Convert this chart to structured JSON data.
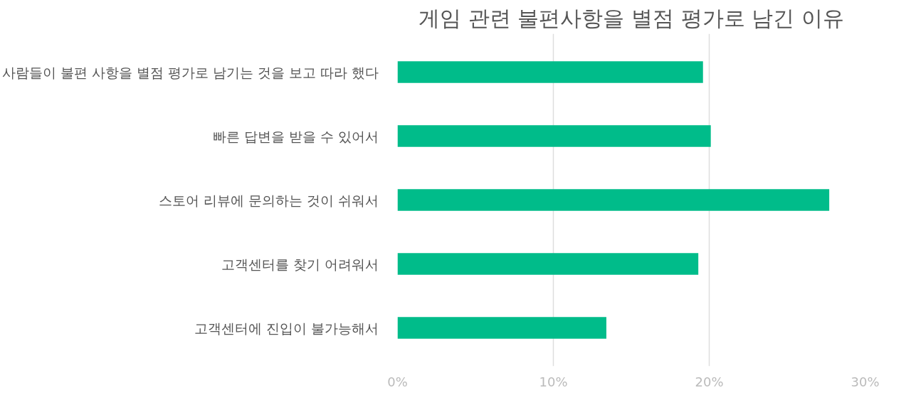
{
  "chart_data": {
    "type": "bar",
    "orientation": "horizontal",
    "title": "게임 관련 불편사항을 별점 평가로 남긴 이유",
    "categories": [
      "사람들이 불편 사항을 별점 평가로 남기는 것을 보고 따라 했다",
      "빠른 답변을 받을 수 있어서",
      "스토어 리뷰에 문의하는 것이 쉬워서",
      "고객센터를 찾기 어려워서",
      "고객센터에 진입이 불가능해서"
    ],
    "values": [
      19.6,
      20.1,
      27.7,
      19.3,
      13.4
    ],
    "color": "#00bc8a",
    "xlim": [
      0,
      30
    ],
    "xticks": [
      {
        "value": 0,
        "label": "0%"
      },
      {
        "value": 10,
        "label": "10%"
      },
      {
        "value": 20,
        "label": "20%"
      },
      {
        "value": 30,
        "label": "30%"
      }
    ],
    "grid": "x"
  }
}
